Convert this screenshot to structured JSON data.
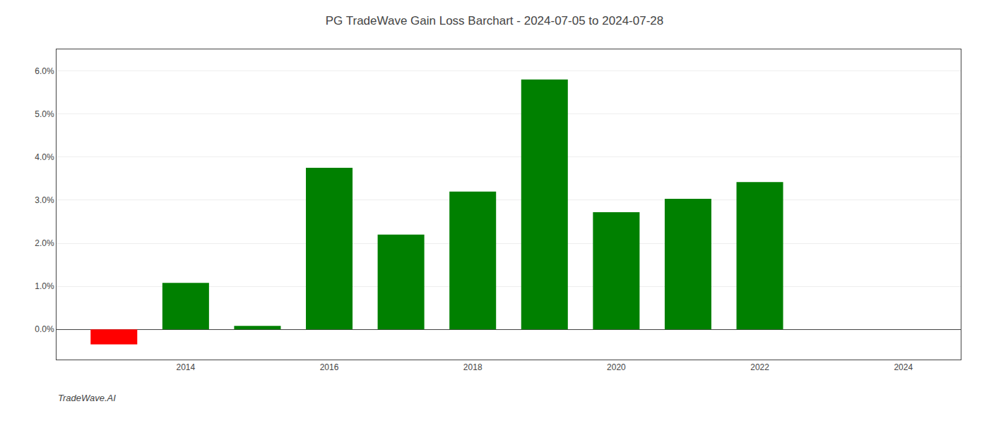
{
  "chart_data": {
    "type": "bar",
    "title": "PG TradeWave Gain Loss Barchart - 2024-07-05 to 2024-07-28",
    "annotations": [
      "TradeWave.AI"
    ],
    "x": [
      2013,
      2014,
      2015,
      2016,
      2017,
      2018,
      2019,
      2020,
      2021,
      2022,
      2023
    ],
    "values": [
      -0.0035,
      0.0108,
      0.0008,
      0.0375,
      0.022,
      0.032,
      0.058,
      0.0272,
      0.0303,
      0.0342,
      0.0
    ],
    "colors": [
      "#ff0000",
      "#008000",
      "#008000",
      "#008000",
      "#008000",
      "#008000",
      "#008000",
      "#008000",
      "#008000",
      "#008000",
      "#008000"
    ],
    "xlim": [
      2012.2,
      2024.8
    ],
    "xticks": [
      2014,
      2016,
      2018,
      2020,
      2022,
      2024
    ],
    "ylim": [
      -0.007,
      0.065
    ],
    "yticks": [
      {
        "value": 0.0,
        "label": "0.0%"
      },
      {
        "value": 0.01,
        "label": "1.0%"
      },
      {
        "value": 0.02,
        "label": "2.0%"
      },
      {
        "value": 0.03,
        "label": "3.0%"
      },
      {
        "value": 0.04,
        "label": "4.0%"
      },
      {
        "value": 0.05,
        "label": "5.0%"
      },
      {
        "value": 0.06,
        "label": "6.0%"
      }
    ],
    "grid": true
  }
}
